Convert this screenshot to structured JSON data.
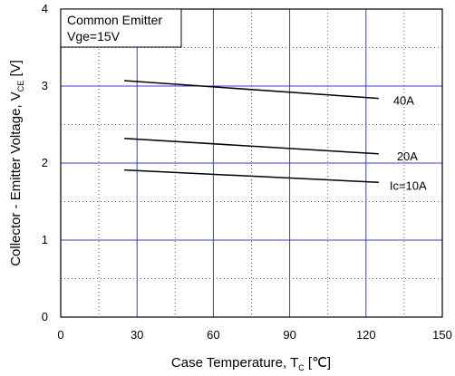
{
  "chart_data": {
    "type": "line",
    "xlabel_parts": {
      "main": "Case Temperature, T",
      "sub": "C",
      "unit": " [℃]"
    },
    "ylabel_parts": {
      "main": "Collector - Emitter Voltage, V",
      "sub": "CE",
      "unit": " [V]"
    },
    "xlim": [
      0,
      150
    ],
    "ylim": [
      0,
      4
    ],
    "x_ticks": [
      0,
      30,
      60,
      90,
      120,
      150
    ],
    "y_ticks": [
      0,
      1,
      2,
      3,
      4
    ],
    "grid": true,
    "legend_box": {
      "line1": "Common Emitter",
      "line2": "Vge=15V",
      "placement": "top-left"
    },
    "series": [
      {
        "name": "40A",
        "x": [
          25,
          125
        ],
        "y": [
          3.07,
          2.84
        ]
      },
      {
        "name": "20A",
        "x": [
          25,
          125
        ],
        "y": [
          2.32,
          2.12
        ]
      },
      {
        "name": "Ic=10A",
        "x": [
          25,
          125
        ],
        "y": [
          1.91,
          1.75
        ]
      }
    ]
  }
}
